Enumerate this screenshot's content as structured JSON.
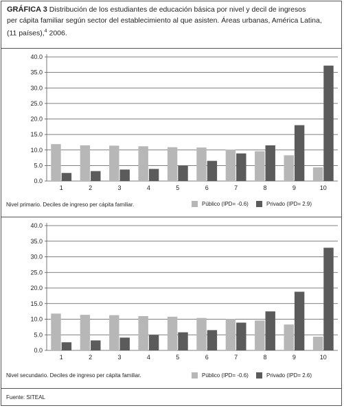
{
  "header": {
    "title_label": "GRÁFICA 3",
    "title_line1": "Distribución de los estudiantes de educación básica por nivel y decil de ingresos",
    "title_line2": "per cápita familiar según sector del establecimiento al que asisten. Áreas urbanas, América Latina,",
    "title_line3": "(11 países),",
    "title_sup": "4",
    "title_year": "2006."
  },
  "colors": {
    "publico": "#b7b7b7",
    "privado": "#5b5b5b",
    "axis": "#555555"
  },
  "chart_data": [
    {
      "type": "bar",
      "caption": "Nivel primario. Deciles de ingreso per cápita familiar.",
      "categories": [
        "1",
        "2",
        "3",
        "4",
        "5",
        "6",
        "7",
        "8",
        "9",
        "10"
      ],
      "series": [
        {
          "name": "Público (IPD= -0.6)",
          "values": [
            11.9,
            11.5,
            11.4,
            11.2,
            10.9,
            10.8,
            10.1,
            9.6,
            8.3,
            4.4
          ]
        },
        {
          "name": "Privado (IPD= 2.9)",
          "values": [
            2.6,
            3.2,
            3.7,
            3.9,
            4.9,
            6.5,
            8.9,
            11.5,
            18.0,
            37.2
          ]
        }
      ],
      "yticks": [
        "0.0",
        "5.0",
        "10.0",
        "15.0",
        "20.0",
        "25.0",
        "30.0",
        "35.0",
        "40.0"
      ],
      "ylim": [
        0,
        40
      ],
      "grid": true
    },
    {
      "type": "bar",
      "caption": "Nivel secundario. Deciles de ingreso per cápita familiar.",
      "categories": [
        "1",
        "2",
        "3",
        "4",
        "5",
        "6",
        "7",
        "8",
        "9",
        "10"
      ],
      "series": [
        {
          "name": "Público (IPD= -0.6)",
          "values": [
            11.8,
            11.4,
            11.3,
            11.0,
            10.8,
            10.4,
            10.1,
            9.6,
            8.3,
            4.4
          ]
        },
        {
          "name": "Privado (IPD= 2.6)",
          "values": [
            2.6,
            3.2,
            4.1,
            4.9,
            5.8,
            6.5,
            8.9,
            12.5,
            18.8,
            32.9
          ]
        }
      ],
      "yticks": [
        "0.0",
        "5.0",
        "10.0",
        "15.0",
        "20.0",
        "25.0",
        "30.0",
        "35.0",
        "40.0"
      ],
      "ylim": [
        0,
        40
      ],
      "grid": true
    }
  ],
  "footer": {
    "source": "Fuente: SITEAL"
  }
}
